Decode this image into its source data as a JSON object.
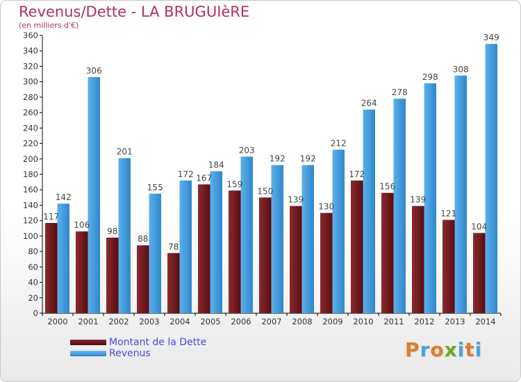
{
  "header": {
    "title": "Revenus/Dette - LA BRUGUIèRE",
    "subtitle": "(en milliers d'€)"
  },
  "colors": {
    "dette": "#7a1e22",
    "revenus": "#4aa3e0",
    "title": "#b03060",
    "legend_text": "#4a4ae0"
  },
  "legend": {
    "items": [
      {
        "label": "Montant de la Dette",
        "color": "#6b1418"
      },
      {
        "label": "Revenus",
        "color": "#3f9ee0"
      }
    ]
  },
  "logo": {
    "text": "Proxiti"
  },
  "chart_data": {
    "type": "bar",
    "title": "Revenus/Dette - LA BRUGUIèRE",
    "subtitle": "(en milliers d'€)",
    "categories": [
      "2000",
      "2001",
      "2002",
      "2003",
      "2004",
      "2005",
      "2006",
      "2007",
      "2008",
      "2009",
      "2010",
      "2011",
      "2012",
      "2013",
      "2014"
    ],
    "series": [
      {
        "name": "Montant de la Dette",
        "values": [
          117,
          106,
          98,
          88,
          78,
          167,
          159,
          150,
          139,
          130,
          172,
          156,
          139,
          121,
          104
        ]
      },
      {
        "name": "Revenus",
        "values": [
          142,
          306,
          201,
          155,
          172,
          184,
          203,
          192,
          192,
          212,
          264,
          278,
          298,
          308,
          349
        ]
      }
    ],
    "ylim": [
      0,
      360
    ],
    "yticks": [
      0,
      20,
      40,
      60,
      80,
      100,
      120,
      140,
      160,
      180,
      200,
      220,
      240,
      260,
      280,
      300,
      320,
      340,
      360
    ],
    "grid": false,
    "legend_position": "bottom-left"
  }
}
